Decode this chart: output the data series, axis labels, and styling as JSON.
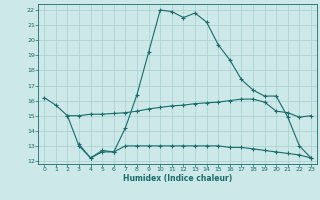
{
  "title": "",
  "xlabel": "Humidex (Indice chaleur)",
  "bg_color": "#cce8e8",
  "grid_color": "#aacfcf",
  "line_color": "#1a6b6b",
  "xlim": [
    -0.5,
    23.5
  ],
  "ylim": [
    11.8,
    22.4
  ],
  "yticks": [
    12,
    13,
    14,
    15,
    16,
    17,
    18,
    19,
    20,
    21,
    22
  ],
  "xticks": [
    0,
    1,
    2,
    3,
    4,
    5,
    6,
    7,
    8,
    9,
    10,
    11,
    12,
    13,
    14,
    15,
    16,
    17,
    18,
    19,
    20,
    21,
    22,
    23
  ],
  "line1_x": [
    0,
    1,
    2,
    3,
    4,
    5,
    6,
    7,
    8,
    9,
    10,
    11,
    12,
    13,
    14,
    15,
    16,
    17,
    18,
    19,
    20,
    21,
    22,
    23
  ],
  "line1_y": [
    16.2,
    15.7,
    15.0,
    13.0,
    12.2,
    12.6,
    12.6,
    14.2,
    16.4,
    19.2,
    22.0,
    21.9,
    21.5,
    21.8,
    21.2,
    19.7,
    18.7,
    17.4,
    16.7,
    16.3,
    16.3,
    14.9,
    13.0,
    12.2
  ],
  "line2_x": [
    2,
    3,
    4,
    5,
    6,
    7,
    8,
    9,
    10,
    11,
    12,
    13,
    14,
    15,
    16,
    17,
    18,
    19,
    20,
    21,
    22,
    23
  ],
  "line2_y": [
    15.0,
    15.0,
    15.1,
    15.1,
    15.15,
    15.2,
    15.3,
    15.45,
    15.55,
    15.65,
    15.7,
    15.8,
    15.85,
    15.9,
    16.0,
    16.1,
    16.1,
    15.9,
    15.3,
    15.2,
    14.9,
    15.0
  ],
  "line3_x": [
    3,
    4,
    5,
    6,
    7,
    8,
    9,
    10,
    11,
    12,
    13,
    14,
    15,
    16,
    17,
    18,
    19,
    20,
    21,
    22,
    23
  ],
  "line3_y": [
    13.1,
    12.2,
    12.7,
    12.6,
    13.0,
    13.0,
    13.0,
    13.0,
    13.0,
    13.0,
    13.0,
    13.0,
    13.0,
    12.9,
    12.9,
    12.8,
    12.7,
    12.6,
    12.5,
    12.4,
    12.2
  ]
}
